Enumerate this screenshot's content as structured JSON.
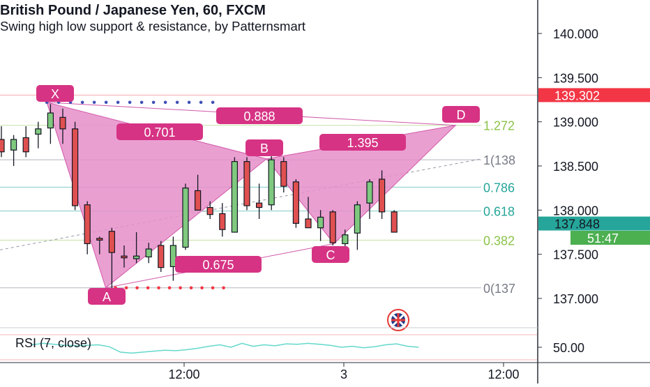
{
  "header": {
    "title": "British Pound / Japanese Yen, 60, FXCM",
    "subtitle": "Swing high low support & resistance, by Patternsmart"
  },
  "chart_data": {
    "type": "candlestick",
    "title": "British Pound / Japanese Yen, 60, FXCM",
    "ylim": [
      136.7,
      140.3
    ],
    "y_ticks": [
      "140.000",
      "139.500",
      "139.000",
      "138.500",
      "138.000",
      "137.500",
      "137.000"
    ],
    "x_ticks": [
      "12:00",
      "3",
      "12:00"
    ],
    "price_tags": [
      {
        "value": "139.302",
        "color": "#f23645",
        "price": 139.302
      },
      {
        "value": "137.848",
        "color": "#26a69a",
        "price": 137.848
      },
      {
        "value": "51:47",
        "color": "#4caf50",
        "price": 137.6
      }
    ],
    "candles": [
      [
        138.8,
        138.95,
        138.6,
        138.66
      ],
      [
        138.68,
        138.85,
        138.5,
        138.8
      ],
      [
        138.82,
        138.95,
        138.6,
        138.66
      ],
      [
        138.86,
        139.0,
        138.7,
        138.92
      ],
      [
        138.93,
        139.2,
        138.75,
        139.1
      ],
      [
        139.05,
        139.15,
        138.75,
        138.92
      ],
      [
        138.92,
        139.0,
        138.0,
        138.05
      ],
      [
        138.06,
        138.1,
        137.5,
        137.62
      ],
      [
        137.68,
        137.7,
        137.5,
        137.66
      ],
      [
        137.76,
        137.8,
        137.1,
        137.52
      ],
      [
        137.48,
        137.6,
        137.35,
        137.46
      ],
      [
        137.45,
        137.75,
        137.4,
        137.48
      ],
      [
        137.47,
        137.63,
        137.4,
        137.56
      ],
      [
        137.6,
        137.65,
        137.3,
        137.35
      ],
      [
        137.36,
        137.7,
        137.2,
        137.6
      ],
      [
        137.58,
        138.3,
        137.55,
        138.25
      ],
      [
        138.22,
        138.4,
        138.0,
        138.0
      ],
      [
        138.03,
        138.1,
        137.9,
        137.95
      ],
      [
        137.96,
        138.08,
        137.7,
        137.78
      ],
      [
        137.75,
        138.6,
        137.75,
        138.55
      ],
      [
        138.55,
        138.6,
        138.0,
        138.05
      ],
      [
        138.08,
        138.3,
        137.9,
        138.03
      ],
      [
        138.06,
        138.65,
        138.0,
        138.57
      ],
      [
        138.55,
        138.6,
        138.2,
        138.27
      ],
      [
        138.32,
        138.35,
        137.8,
        137.85
      ],
      [
        137.9,
        138.15,
        137.8,
        137.8
      ],
      [
        137.8,
        138.0,
        137.65,
        137.92
      ],
      [
        137.98,
        138.0,
        137.6,
        137.63
      ],
      [
        137.62,
        137.78,
        137.5,
        137.72
      ],
      [
        137.74,
        138.1,
        137.55,
        138.06
      ],
      [
        138.08,
        138.35,
        137.9,
        138.32
      ],
      [
        138.35,
        138.45,
        137.9,
        137.98
      ],
      [
        137.98,
        138.0,
        137.75,
        137.75
      ]
    ],
    "fib_levels": [
      {
        "label": "1.272",
        "price": 138.96,
        "color": "#8bc34a"
      },
      {
        "label": "1(138",
        "price": 138.57,
        "color": "#787b86"
      },
      {
        "label": "0.786",
        "price": 138.26,
        "color": "#26a69a"
      },
      {
        "label": "0.618",
        "price": 137.99,
        "color": "#26a69a"
      },
      {
        "label": "0.382",
        "price": 137.66,
        "color": "#8bc34a"
      },
      {
        "label": "0(137",
        "price": 137.12,
        "color": "#787b86"
      }
    ],
    "resistance_price": 139.302,
    "pattern_points": {
      "X": {
        "candle": 3.7,
        "price": 139.22
      },
      "A": {
        "candle": 8.5,
        "price": 137.12
      },
      "B": {
        "candle": 21.6,
        "price": 138.58
      },
      "C": {
        "candle": 27.1,
        "price": 137.62
      },
      "D": {
        "candle": 37.0,
        "price": 138.96
      }
    },
    "point_labels": [
      "X",
      "A",
      "B",
      "C",
      "D"
    ],
    "ratio_labels": [
      {
        "text": "0.701"
      },
      {
        "text": "0.888"
      },
      {
        "text": "1.395"
      },
      {
        "text": "0.675"
      }
    ],
    "rsi": {
      "label": "RSI (7, close)",
      "tick": "50.00",
      "values": [
        55,
        58,
        56,
        54,
        53,
        54,
        55,
        51,
        40,
        38,
        40,
        42,
        44,
        43,
        45,
        48,
        52,
        55,
        50,
        58,
        52,
        55,
        53,
        57,
        56,
        58,
        56,
        54,
        50,
        52,
        49,
        51,
        55,
        57,
        52,
        50
      ]
    }
  }
}
